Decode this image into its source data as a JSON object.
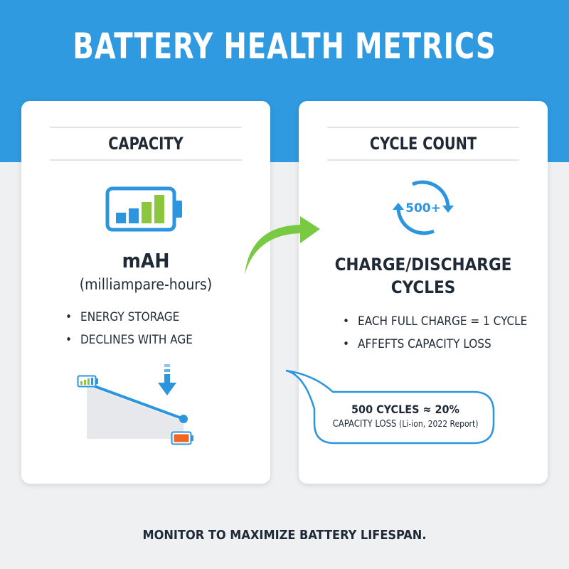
{
  "title": "BATTERY HEALTH METRICS",
  "capacity_card": {
    "heading": "CAPACITY",
    "unit": "mAH",
    "unit_long": "(milliampare-hours)",
    "bullets": [
      "ENERGY STORAGE",
      "DECLINES WITH AGE"
    ]
  },
  "cycle_card": {
    "heading": "CYCLE COUNT",
    "badge": "500+",
    "title_line1": "CHARGE/DISCHARGE",
    "title_line2": "CYCLES",
    "bullets": [
      "EACH FULL CHARGE = 1 CYCLE",
      "AFFEFTS CAPACITY LOSS"
    ]
  },
  "callout": {
    "line1": "500 CYCLES ≈ 20%",
    "line2_main": "CAPACITY LOSS",
    "line2_note": "(Li-ion, 2022 Report)"
  },
  "footer": "MONITOR TO MAXIMIZE BATTERY LIFESPAN.",
  "colors": {
    "header_blue": "#2f9ae0",
    "icon_blue": "#2b96de",
    "bar_green": "#8cc63f",
    "arrow_green": "#7ac943",
    "low_battery_orange": "#f26522"
  },
  "icons": [
    "battery-icon",
    "cycle-arrows-icon",
    "down-arrow-icon",
    "curved-arrow-icon",
    "small-battery-icon"
  ]
}
